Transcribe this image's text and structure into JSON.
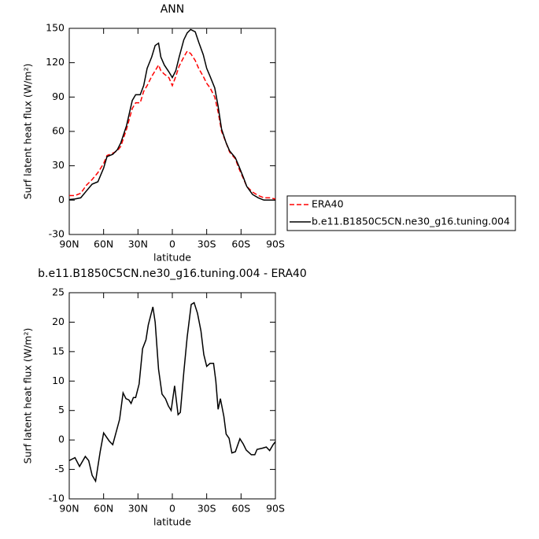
{
  "chart_data": [
    {
      "type": "line",
      "title": "ANN",
      "x_label": "latitude",
      "y_label": "Surf latent heat flux (W/m²)",
      "x": [
        90,
        85,
        80,
        75,
        70,
        65,
        60,
        57,
        52,
        48,
        45,
        40,
        35,
        32,
        28,
        25,
        22,
        18,
        15,
        12,
        10,
        7,
        3,
        0,
        -3,
        -6,
        -10,
        -13,
        -16,
        -20,
        -23,
        -27,
        -30,
        -33,
        -37,
        -40,
        -43,
        -47,
        -50,
        -55,
        -58,
        -62,
        -65,
        -70,
        -75,
        -80,
        -85,
        -90
      ],
      "series": [
        {
          "name": "ERA40",
          "color": "#ff0000",
          "linestyle": "dashed",
          "values": [
            4,
            4,
            6,
            13,
            18,
            24,
            32,
            39,
            41,
            43,
            47,
            62,
            80,
            85,
            85,
            95,
            100,
            108,
            113,
            118,
            113,
            110,
            107,
            100,
            108,
            117,
            125,
            130,
            128,
            122,
            115,
            108,
            102,
            98,
            90,
            77,
            60,
            50,
            42,
            36,
            28,
            19,
            12,
            7,
            4,
            2,
            2,
            1
          ]
        },
        {
          "name": "b.e11.B1850C5CN.ne30_g16.tuning.004",
          "color": "#000000",
          "linestyle": "solid",
          "values": [
            0.5,
            1,
            2,
            8,
            14,
            16,
            28,
            38,
            40,
            44,
            50,
            65,
            87,
            92,
            92,
            100,
            115,
            125,
            135,
            137,
            125,
            118,
            112,
            107,
            113,
            125,
            140,
            146,
            149,
            147,
            138,
            127,
            115,
            108,
            98,
            82,
            62,
            50,
            43,
            37,
            30,
            20,
            12,
            5,
            2,
            0,
            0,
            0
          ]
        }
      ],
      "xlim": [
        90,
        -90
      ],
      "xticks": [
        {
          "value": 90,
          "label": "90N"
        },
        {
          "value": 60,
          "label": "60N"
        },
        {
          "value": 30,
          "label": "30N"
        },
        0,
        {
          "value": -30,
          "label": "30S"
        },
        {
          "value": -60,
          "label": "60S"
        },
        {
          "value": -90,
          "label": "90S"
        }
      ],
      "ylim": [
        -30,
        150
      ],
      "yticks": [
        -30,
        0,
        30,
        60,
        90,
        120,
        150
      ],
      "legend": "right"
    },
    {
      "type": "line",
      "title": "b.e11.B1850C5CN.ne30_g16.tuning.004 - ERA40",
      "x_label": "latitude",
      "y_label": "Surf latent heat flux (W/m²)",
      "x": [
        90,
        85,
        81,
        76,
        73,
        70,
        67,
        63,
        60,
        55,
        52,
        46,
        43,
        40.5,
        38,
        36,
        34,
        32,
        29,
        26,
        23,
        21,
        17,
        15,
        12,
        9,
        6,
        3.5,
        1,
        -2,
        -5,
        -7,
        -10,
        -13,
        -16.5,
        -19,
        -22,
        -25,
        -27.5,
        -30,
        -33,
        -36,
        -38,
        -40,
        -42,
        -45,
        -47,
        -49.5,
        -52,
        -55,
        -59,
        -62,
        -64.5,
        -69,
        -72,
        -74,
        -78.5,
        -82,
        -85,
        -88,
        -90
      ],
      "series": [
        {
          "name": "b.e11.B1850C5CN.ne30_g16.tuning.004 - ERA40",
          "color": "#000000",
          "linestyle": "solid",
          "values": [
            -3.5,
            -3,
            -4.5,
            -2.8,
            -3.5,
            -6,
            -7,
            -2,
            1.2,
            -0.2,
            -0.8,
            3.5,
            8,
            7,
            6.8,
            6.2,
            7.2,
            7.2,
            9.5,
            15.5,
            17,
            19.5,
            22.6,
            20,
            12,
            7.8,
            7,
            5.8,
            5,
            9.2,
            4.3,
            4.7,
            11.5,
            17.5,
            23,
            23.3,
            21.5,
            18.5,
            14.5,
            12.5,
            13,
            13,
            10,
            5.2,
            7,
            4,
            1,
            0.3,
            -2.2,
            -2,
            0.2,
            -0.7,
            -1.7,
            -2.5,
            -2.5,
            -1.6,
            -1.4,
            -1.2,
            -1.8,
            -0.8,
            -0.3
          ]
        }
      ],
      "xlim": [
        90,
        -90
      ],
      "xticks": [
        {
          "value": 90,
          "label": "90N"
        },
        {
          "value": 60,
          "label": "60N"
        },
        {
          "value": 30,
          "label": "30N"
        },
        0,
        {
          "value": -30,
          "label": "30S"
        },
        {
          "value": -60,
          "label": "60S"
        },
        {
          "value": -90,
          "label": "90S"
        }
      ],
      "ylim": [
        -10,
        25
      ],
      "yticks": [
        -10,
        -5,
        0,
        5,
        10,
        15,
        20,
        25
      ]
    }
  ]
}
